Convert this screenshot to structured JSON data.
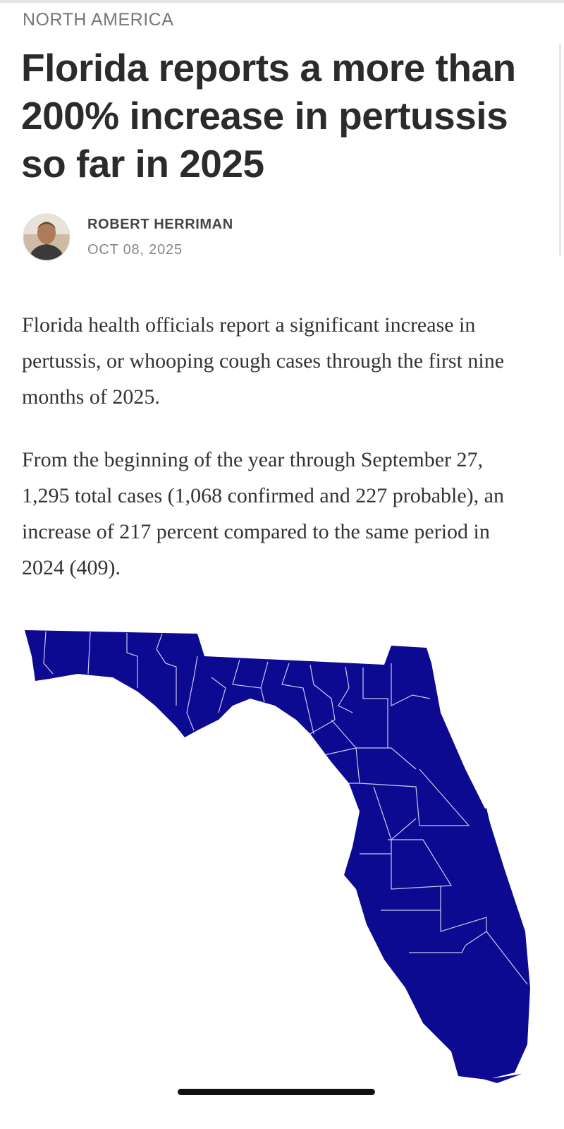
{
  "section": "NORTH AMERICA",
  "title": "Florida reports a more than 200% increase in pertussis so far in 2025",
  "author": {
    "name": "ROBERT HERRIMAN",
    "date": "OCT 08, 2025"
  },
  "paragraphs": [
    "Florida health officials report a significant increase in pertussis, or whooping cough cases through the first nine months of 2025.",
    "From the beginning of the year through September 27, 1,295 total cases (1,068 confirmed and 227 probable), an increase of 217 percent compared to the same period in 2024 (409)."
  ]
}
